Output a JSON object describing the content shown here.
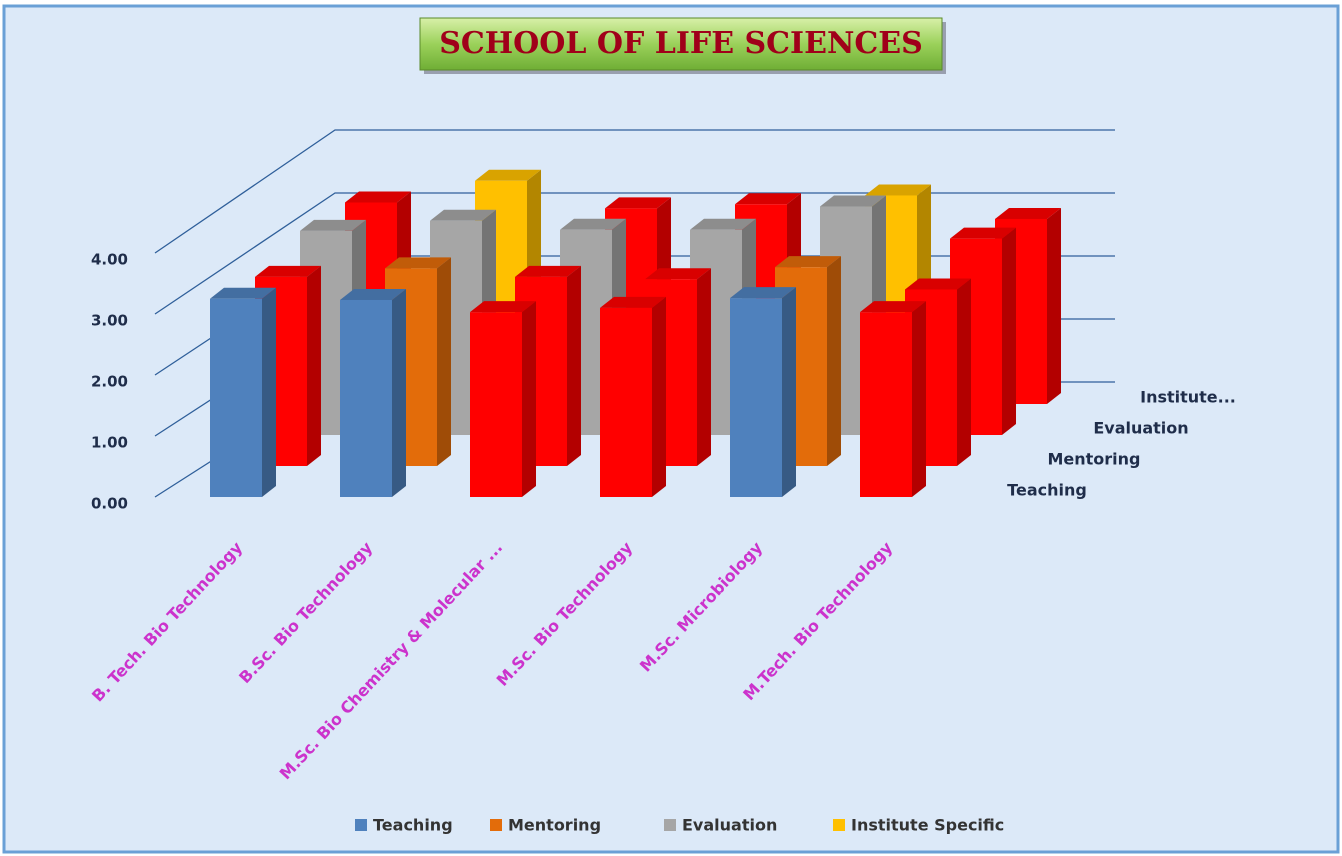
{
  "chart_data": {
    "type": "bar3d",
    "title": "SCHOOL OF LIFE SCIENCES",
    "categories": [
      "B. Tech. Bio Technology",
      "B.Sc. Bio Technology",
      "M.Sc. Bio Chemistry & Molecular ...",
      "M.Sc. Bio Technology",
      "M.Sc. Microbiology",
      "M.Tech. Bio Technology"
    ],
    "depth_labels": [
      "Teaching",
      "Mentoring",
      "Evaluation",
      "Institute..."
    ],
    "series": [
      {
        "name": "Teaching",
        "color": "#4f81bd",
        "values": [
          3.25,
          3.23,
          3.03,
          3.1,
          3.26,
          3.03
        ],
        "colors": [
          "#4f81bd",
          "#4f81bd",
          "#ff0000",
          "#ff0000",
          "#4f81bd",
          "#ff0000"
        ]
      },
      {
        "name": "Mentoring",
        "color": "#e36c0a",
        "values": [
          3.14,
          3.28,
          3.14,
          3.1,
          3.3,
          2.93
        ],
        "colors": [
          "#ff0000",
          "#e36c0a",
          "#ff0000",
          "#ff0000",
          "#e36c0a",
          "#ff0000"
        ]
      },
      {
        "name": "Evaluation",
        "color": "#a6a6a6",
        "values": [
          3.43,
          3.6,
          3.45,
          3.45,
          3.84,
          3.3
        ],
        "colors": [
          "#a6a6a6",
          "#a6a6a6",
          "#a6a6a6",
          "#a6a6a6",
          "#a6a6a6",
          "#ff0000"
        ]
      },
      {
        "name": "Institute Specific",
        "color": "#ffc000",
        "values": [
          3.43,
          3.8,
          3.33,
          3.4,
          3.55,
          3.15
        ],
        "colors": [
          "#ff0000",
          "#ffc000",
          "#ff0000",
          "#ff0000",
          "#ffc000",
          "#ff0000"
        ]
      }
    ],
    "ylim": [
      0,
      4
    ],
    "yticks": [
      {
        "value": 0,
        "label": "0.00"
      },
      {
        "value": 1,
        "label": "1.00"
      },
      {
        "value": 2,
        "label": "2.00"
      },
      {
        "value": 3,
        "label": "3.00"
      },
      {
        "value": 4,
        "label": "4.00"
      }
    ],
    "grid": true,
    "legend": "bottom"
  }
}
